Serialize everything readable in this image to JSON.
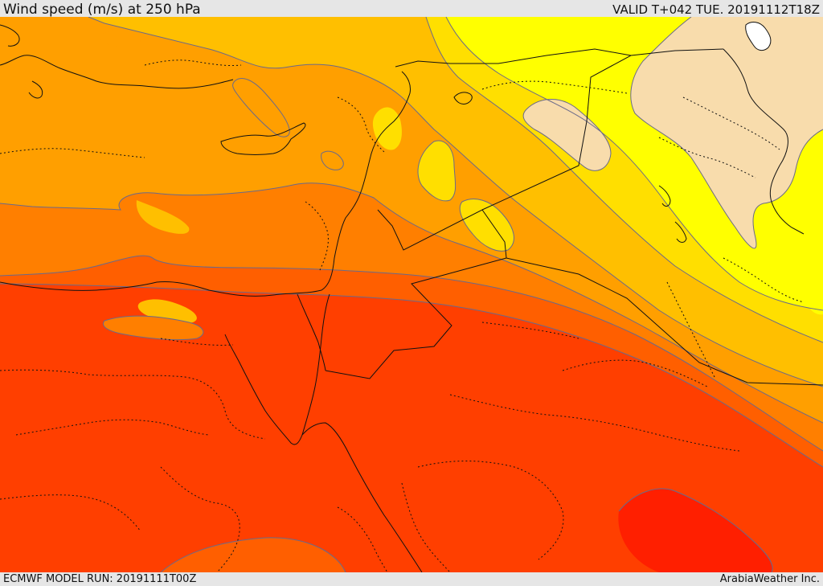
{
  "header": {
    "title": "Wind speed (m/s) at 250 hPa",
    "valid": "VALID T+042 TUE. 20191112T18Z"
  },
  "footer": {
    "model_run": "ECMWF MODEL RUN: 20191111T00Z",
    "credit": "ArabiaWeather Inc."
  },
  "colors": {
    "below_20": "#f8dcac",
    "band_20_30": "#ffff00",
    "band_30_35": "#ffdf00",
    "band_35_40": "#ffbf00",
    "band_40_45": "#ff9f00",
    "band_45_50": "#ff7f00",
    "band_50_55": "#ff5f00",
    "band_55_60": "#ff3f00",
    "band_above_60": "#ff1f00",
    "contour_line": "#6a6a8a",
    "border_line": "#111111",
    "lake": "#ffffff"
  }
}
